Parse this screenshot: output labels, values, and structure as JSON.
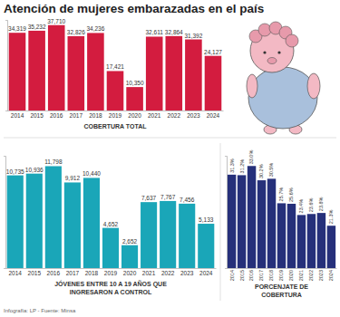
{
  "title": "Atención de mujeres embarazadas en el país",
  "source": "Infografía: LP - Fuente: Minsa",
  "chart_data": [
    {
      "type": "bar",
      "x_label": "COBERTURA TOTAL",
      "categories": [
        "2014",
        "2015",
        "2016",
        "2017",
        "2018",
        "2019",
        "2020",
        "2021",
        "2022",
        "2023",
        "2024"
      ],
      "values": [
        34319,
        35232,
        37710,
        32826,
        34236,
        17421,
        10350,
        32611,
        32864,
        31392,
        24127
      ],
      "value_labels": [
        "34,319",
        "35,232",
        "37,710",
        "32,826",
        "34,236",
        "17,421",
        "10,350",
        "32,611",
        "32,864",
        "31,392",
        "24,127"
      ],
      "color": "#d31c3f",
      "ylim": [
        0,
        40000
      ],
      "grid": false,
      "data_labels": true,
      "tick_labels": "x"
    },
    {
      "type": "bar",
      "x_label": "JÓVENES ENTRE 10 A 19 AÑOS QUE INGRESARON A CONTROL",
      "categories": [
        "2014",
        "2015",
        "2016",
        "2017",
        "2018",
        "2019",
        "2020",
        "2021",
        "2022",
        "2023",
        "2024"
      ],
      "values": [
        10735,
        10936,
        11798,
        9912,
        10440,
        4652,
        2652,
        7637,
        7767,
        7456,
        5133
      ],
      "value_labels": [
        "10,735",
        "10,936",
        "11,798",
        "9,912",
        "10,440",
        "4,652",
        "2,652",
        "7,637",
        "7,767",
        "7,456",
        "5,133"
      ],
      "color": "#1aa6b8",
      "ylim": [
        0,
        13000
      ],
      "grid": false,
      "data_labels": true,
      "tick_labels": "x"
    },
    {
      "type": "bar",
      "x_label": "PORCENJATE DE COBERTURA",
      "categories": [
        "2014",
        "2015",
        "2016",
        "2017",
        "2018",
        "2019",
        "2020",
        "2021",
        "2022",
        "2023",
        "2024"
      ],
      "values": [
        31.3,
        31.2,
        33.0,
        30.2,
        30.5,
        25.7,
        25.6,
        23.4,
        23.6,
        23.8,
        21.3
      ],
      "value_labels": [
        "31.3%",
        "31.2%",
        "33.0%",
        "30.2%",
        "30.5%",
        "25.7%",
        "25.6%",
        "23.4%",
        "23.6%",
        "23.8%",
        "21.3%"
      ],
      "color": "#26307a",
      "ylim": [
        13,
        35
      ],
      "grid": false,
      "data_labels": true,
      "tick_labels": "x"
    }
  ]
}
